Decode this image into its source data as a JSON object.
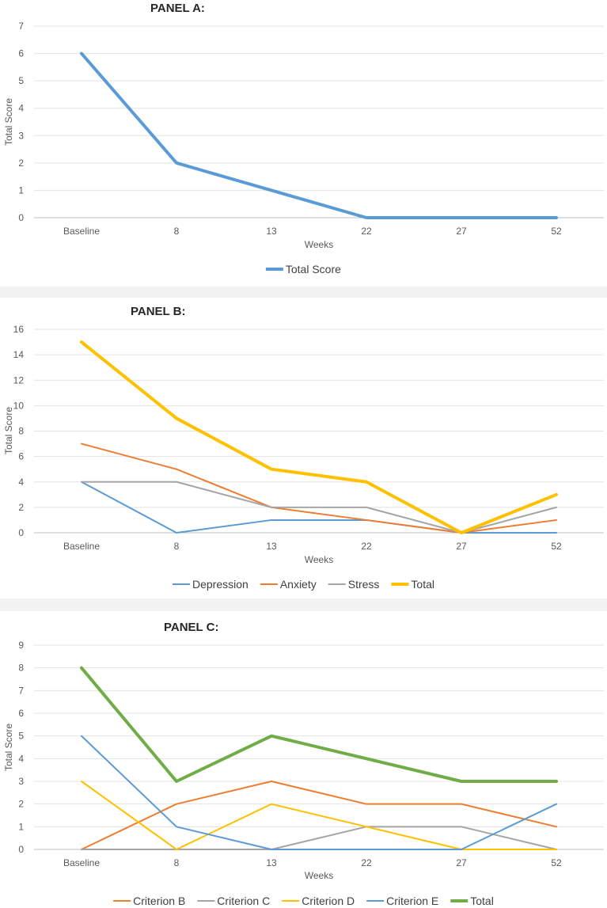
{
  "chart_data": [
    {
      "type": "line",
      "title": "PANEL A:",
      "xlabel": "Weeks",
      "ylabel": "Total Score",
      "categories": [
        "Baseline",
        "8",
        "13",
        "22",
        "27",
        "52"
      ],
      "ylim": [
        0,
        7
      ],
      "yticks": [
        0,
        1,
        2,
        3,
        4,
        5,
        6,
        7
      ],
      "grid": true,
      "legend": "bottom",
      "series": [
        {
          "name": "Total Score",
          "color": "#5B9BD5",
          "bold": true,
          "values": [
            6,
            2,
            1,
            0,
            0,
            0
          ]
        }
      ]
    },
    {
      "type": "line",
      "title": "PANEL B:",
      "xlabel": "Weeks",
      "ylabel": "Total Score",
      "categories": [
        "Baseline",
        "8",
        "13",
        "22",
        "27",
        "52"
      ],
      "ylim": [
        0,
        16
      ],
      "yticks": [
        0,
        2,
        4,
        6,
        8,
        10,
        12,
        14,
        16
      ],
      "grid": true,
      "legend": "bottom",
      "series": [
        {
          "name": "Depression",
          "color": "#5B9BD5",
          "bold": false,
          "values": [
            4,
            0,
            1,
            1,
            0,
            0
          ]
        },
        {
          "name": "Anxiety",
          "color": "#ED7D31",
          "bold": false,
          "values": [
            7,
            5,
            2,
            1,
            0,
            1
          ]
        },
        {
          "name": "Stress",
          "color": "#A5A5A5",
          "bold": false,
          "values": [
            4,
            4,
            2,
            2,
            0,
            2
          ]
        },
        {
          "name": "Total",
          "color": "#FFC000",
          "bold": true,
          "values": [
            15,
            9,
            5,
            4,
            0,
            3
          ]
        }
      ]
    },
    {
      "type": "line",
      "title": "PANEL C:",
      "xlabel": "Weeks",
      "ylabel": "Total Score",
      "categories": [
        "Baseline",
        "8",
        "13",
        "22",
        "27",
        "52"
      ],
      "ylim": [
        0,
        9
      ],
      "yticks": [
        0,
        1,
        2,
        3,
        4,
        5,
        6,
        7,
        8,
        9
      ],
      "grid": true,
      "legend": "bottom",
      "series": [
        {
          "name": "Criterion B",
          "color": "#ED7D31",
          "bold": false,
          "values": [
            0,
            2,
            3,
            2,
            2,
            1
          ]
        },
        {
          "name": "Criterion C",
          "color": "#A5A5A5",
          "bold": false,
          "values": [
            0,
            0,
            0,
            1,
            1,
            0
          ]
        },
        {
          "name": "Criterion D",
          "color": "#FFC000",
          "bold": false,
          "values": [
            3,
            0,
            2,
            1,
            0,
            0
          ]
        },
        {
          "name": "Criterion E",
          "color": "#5B9BD5",
          "bold": false,
          "values": [
            5,
            1,
            0,
            0,
            0,
            2
          ]
        },
        {
          "name": "Total",
          "color": "#70AD47",
          "bold": true,
          "values": [
            8,
            3,
            5,
            4,
            3,
            3
          ]
        }
      ]
    }
  ]
}
